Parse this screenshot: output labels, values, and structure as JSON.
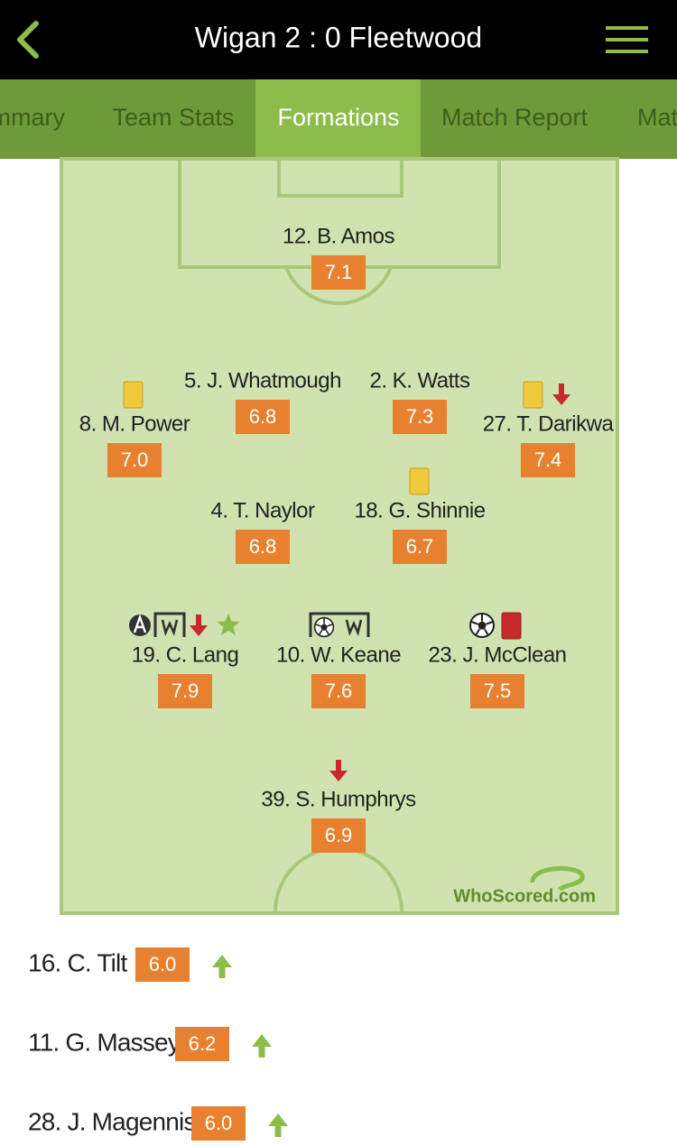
{
  "header": {
    "title": "Wigan 2 : 0 Fleetwood"
  },
  "tabs": [
    "mmary",
    "Team Stats",
    "Formations",
    "Match Report",
    "Mat"
  ],
  "formation": {
    "players": [
      {
        "name": "12. B. Amos",
        "rating": "7.1"
      },
      {
        "name": "5. J. Whatmough",
        "rating": "6.8"
      },
      {
        "name": "2. K. Watts",
        "rating": "7.3"
      },
      {
        "name": "8. M. Power",
        "rating": "7.0"
      },
      {
        "name": "27. T. Darikwa",
        "rating": "7.4"
      },
      {
        "name": "4. T. Naylor",
        "rating": "6.8"
      },
      {
        "name": "18. G. Shinnie",
        "rating": "6.7"
      },
      {
        "name": "19. C. Lang",
        "rating": "7.9"
      },
      {
        "name": "10. W. Keane",
        "rating": "7.6"
      },
      {
        "name": "23. J. McClean",
        "rating": "7.5"
      },
      {
        "name": "39. S. Humphrys",
        "rating": "6.9"
      }
    ]
  },
  "logo": "WhoScored.com",
  "substitutes": [
    {
      "name": "16. C. Tilt",
      "rating": "6.0"
    },
    {
      "name": "11. G. Massey",
      "rating": "6.2"
    },
    {
      "name": "28. J. Magennis",
      "rating": "6.0"
    }
  ]
}
